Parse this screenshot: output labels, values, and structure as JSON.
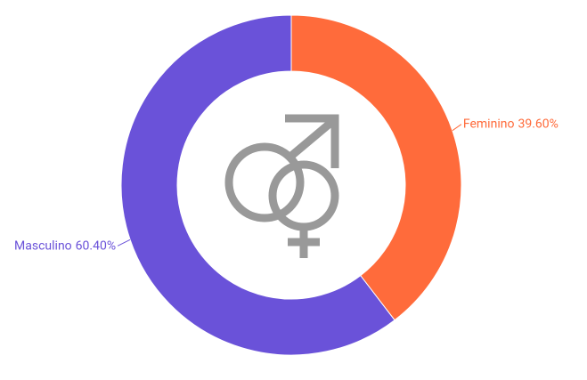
{
  "chart_data": {
    "type": "pie",
    "categories": [
      "Feminino",
      "Masculino"
    ],
    "values": [
      39.6,
      60.4
    ],
    "value_labels": [
      "39.60%",
      "60.40%"
    ],
    "colors": [
      "#ff6b3b",
      "#6a52d9"
    ]
  }
}
